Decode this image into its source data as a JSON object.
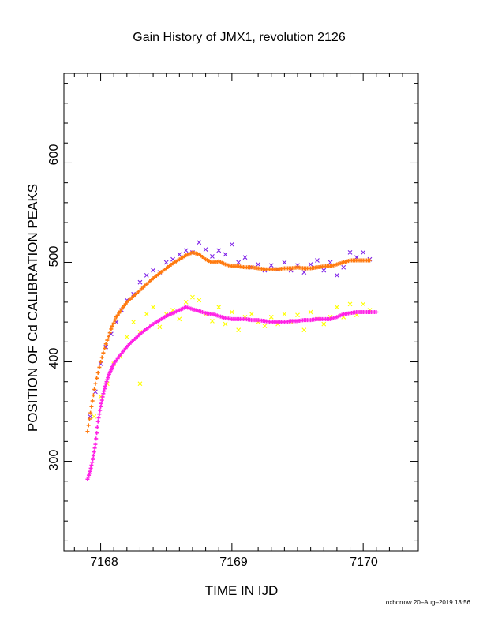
{
  "chart_data": {
    "type": "scatter",
    "title": "Gain History of JMX1, revolution 2126",
    "xlabel": "TIME IN IJD",
    "ylabel": "POSITION OF Cd CALIBRATION PEAKS",
    "xlim": [
      7167.72,
      7170.42
    ],
    "ylim": [
      210,
      690
    ],
    "x_ticks": [
      "7168",
      "7169",
      "7170"
    ],
    "y_ticks": [
      "300",
      "400",
      "500",
      "600"
    ],
    "grid": false,
    "series": [
      {
        "marker": "x",
        "color": "#7f22e8",
        "x": [
          7167.92,
          7167.96,
          7168.0,
          7168.04,
          7168.08,
          7168.12,
          7168.16,
          7168.2,
          7168.25,
          7168.3,
          7168.35,
          7168.4,
          7168.45,
          7168.5,
          7168.55,
          7168.6,
          7168.65,
          7168.7,
          7168.75,
          7168.8,
          7168.85,
          7168.9,
          7168.95,
          7169.0,
          7169.05,
          7169.1,
          7169.15,
          7169.2,
          7169.25,
          7169.3,
          7169.35,
          7169.4,
          7169.45,
          7169.5,
          7169.55,
          7169.6,
          7169.65,
          7169.7,
          7169.75,
          7169.8,
          7169.85,
          7169.9,
          7169.95,
          7170.0,
          7170.05
        ],
        "y": [
          345,
          370,
          398,
          415,
          428,
          440,
          452,
          462,
          468,
          480,
          487,
          492,
          490,
          500,
          503,
          508,
          512,
          510,
          520,
          513,
          506,
          512,
          508,
          518,
          500,
          505,
          495,
          498,
          492,
          497,
          493,
          500,
          492,
          497,
          490,
          498,
          502,
          492,
          500,
          487,
          495,
          510,
          505,
          510,
          503
        ]
      },
      {
        "marker": "x",
        "color": "#ffff00",
        "x": [
          7167.95,
          7168.0,
          7168.05,
          7168.1,
          7168.15,
          7168.2,
          7168.25,
          7168.3,
          7168.35,
          7168.4,
          7168.45,
          7168.5,
          7168.55,
          7168.6,
          7168.65,
          7168.7,
          7168.75,
          7168.8,
          7168.85,
          7168.9,
          7168.95,
          7169.0,
          7169.05,
          7169.1,
          7169.15,
          7169.2,
          7169.25,
          7169.3,
          7169.35,
          7169.4,
          7169.45,
          7169.5,
          7169.55,
          7169.6,
          7169.65,
          7169.7,
          7169.75,
          7169.8,
          7169.85,
          7169.9,
          7169.95,
          7170.0,
          7170.05,
          7168.3
        ],
        "y": [
          345,
          365,
          378,
          398,
          405,
          425,
          440,
          430,
          448,
          455,
          435,
          448,
          452,
          443,
          460,
          465,
          462,
          448,
          441,
          455,
          438,
          450,
          432,
          445,
          448,
          440,
          436,
          445,
          438,
          448,
          440,
          447,
          432,
          450,
          443,
          438,
          445,
          455,
          445,
          458,
          447,
          458,
          452,
          378
        ]
      },
      {
        "name": "",
        "marker": "+",
        "color": "#ff7a0f",
        "x": [
          7167.9,
          7167.93,
          7167.96,
          7168.0,
          7168.04,
          7168.08,
          7168.12,
          7168.16,
          7168.2,
          7168.25,
          7168.3,
          7168.35,
          7168.4,
          7168.45,
          7168.5,
          7168.55,
          7168.6,
          7168.65,
          7168.7,
          7168.75,
          7168.8,
          7168.85,
          7168.9,
          7168.95,
          7169.0,
          7169.05,
          7169.1,
          7169.15,
          7169.2,
          7169.25,
          7169.3,
          7169.35,
          7169.4,
          7169.45,
          7169.5,
          7169.55,
          7169.6,
          7169.65,
          7169.7,
          7169.75,
          7169.8,
          7169.85,
          7169.9,
          7169.95,
          7170.0,
          7170.05
        ],
        "y": [
          330,
          355,
          378,
          400,
          418,
          433,
          445,
          453,
          460,
          466,
          472,
          478,
          484,
          489,
          494,
          499,
          503,
          507,
          510,
          508,
          503,
          500,
          501,
          498,
          496,
          496,
          495,
          495,
          494,
          493,
          493,
          493,
          494,
          494,
          495,
          494,
          494,
          495,
          496,
          496,
          498,
          500,
          502,
          502,
          502,
          502
        ]
      },
      {
        "name": "",
        "marker": "+",
        "color": "#ff22e6",
        "x": [
          7167.9,
          7167.92,
          7167.94,
          7167.96,
          7167.98,
          7168.0,
          7168.02,
          7168.04,
          7168.06,
          7168.08,
          7168.1,
          7168.14,
          7168.18,
          7168.22,
          7168.26,
          7168.3,
          7168.35,
          7168.4,
          7168.45,
          7168.5,
          7168.55,
          7168.6,
          7168.65,
          7168.7,
          7168.75,
          7168.8,
          7168.85,
          7168.9,
          7168.95,
          7169.0,
          7169.05,
          7169.1,
          7169.15,
          7169.2,
          7169.25,
          7169.3,
          7169.35,
          7169.4,
          7169.45,
          7169.5,
          7169.55,
          7169.6,
          7169.65,
          7169.7,
          7169.75,
          7169.8,
          7169.85,
          7169.9,
          7169.95,
          7170.0,
          7170.05,
          7170.1
        ],
        "y": [
          282,
          290,
          302,
          317,
          340,
          355,
          368,
          378,
          386,
          392,
          398,
          405,
          412,
          418,
          423,
          428,
          433,
          438,
          442,
          446,
          449,
          452,
          455,
          453,
          451,
          449,
          448,
          446,
          444,
          443,
          443,
          443,
          442,
          442,
          441,
          440,
          440,
          440,
          441,
          441,
          442,
          442,
          443,
          443,
          443,
          445,
          448,
          449,
          450,
          450,
          450,
          450
        ]
      }
    ]
  },
  "footer": "oxborrow 20–Aug–2019 13:56"
}
